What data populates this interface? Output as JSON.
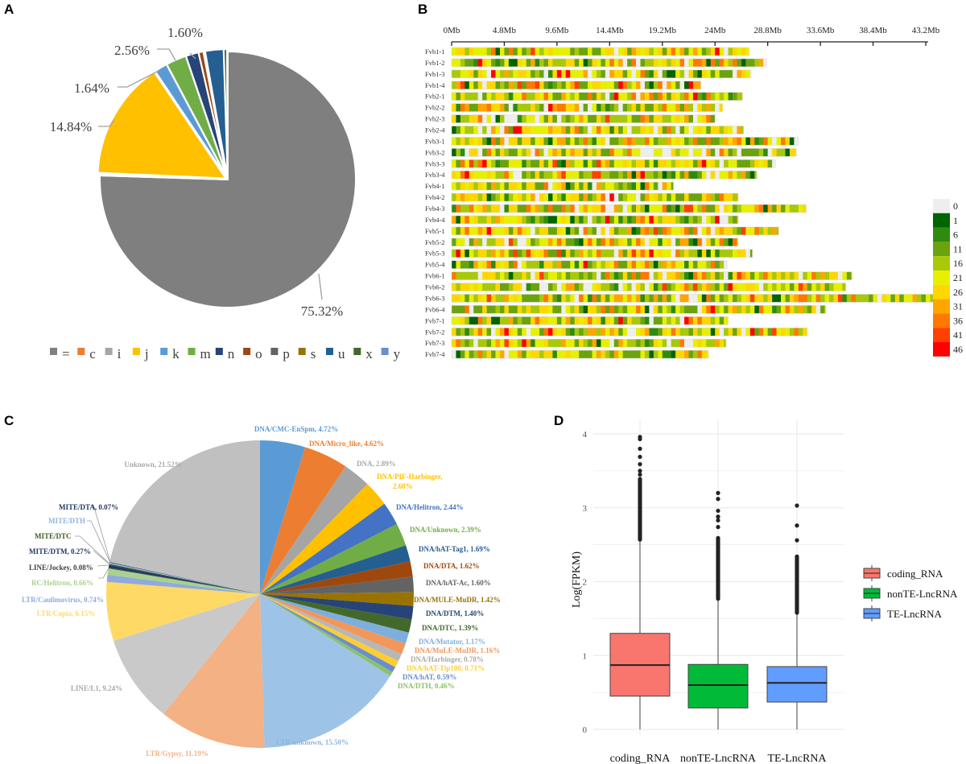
{
  "panels": {
    "a": "A",
    "b": "B",
    "c": "C",
    "d": "D"
  },
  "chart_data": [
    {
      "type": "pie",
      "panel": "A",
      "slices": [
        {
          "name": "=",
          "value": 75.32,
          "label": "75.32%",
          "color": "#7f7f7f"
        },
        {
          "name": "c",
          "value": 0.1,
          "label": "",
          "color": "#ed7d31"
        },
        {
          "name": "i",
          "value": 0.1,
          "label": "",
          "color": "#a5a5a5"
        },
        {
          "name": "j",
          "value": 14.84,
          "label": "14.84%",
          "color": "#ffc000"
        },
        {
          "name": "k",
          "value": 1.64,
          "label": "1.64%",
          "color": "#5b9bd5"
        },
        {
          "name": "m",
          "value": 2.56,
          "label": "2.56%",
          "color": "#70ad47"
        },
        {
          "name": "n",
          "value": 1.6,
          "label": "1.60%",
          "color": "#264478"
        },
        {
          "name": "o",
          "value": 0.6,
          "label": "",
          "color": "#9e480e"
        },
        {
          "name": "p",
          "value": 0.1,
          "label": "",
          "color": "#636363"
        },
        {
          "name": "s",
          "value": 0.1,
          "label": "",
          "color": "#997300"
        },
        {
          "name": "u",
          "value": 2.3,
          "label": "",
          "color": "#255e91"
        },
        {
          "name": "x",
          "value": 0.4,
          "label": "",
          "color": "#43682b"
        },
        {
          "name": "y",
          "value": 0.1,
          "label": "",
          "color": "#698ed0"
        }
      ],
      "legend": [
        "=",
        "c",
        "i",
        "j",
        "k",
        "m",
        "n",
        "o",
        "p",
        "s",
        "u",
        "x",
        "y"
      ],
      "legend_position": "bottom"
    },
    {
      "type": "heatmap",
      "panel": "B",
      "x_ticks": [
        "0Mb",
        "4.8Mb",
        "9.6Mb",
        "14.4Mb",
        "19.2Mb",
        "24Mb",
        "28.8Mb",
        "33.6Mb",
        "38.4Mb",
        "43.2Mb"
      ],
      "x_tick_values_mb": [
        0,
        4.8,
        9.6,
        14.4,
        19.2,
        24,
        28.8,
        33.6,
        38.4,
        43.2
      ],
      "axis_position": "top",
      "chromosomes": [
        {
          "name": "Fvb1-1",
          "length_mb": 27.1
        },
        {
          "name": "Fvb1-2",
          "length_mb": 28.7
        },
        {
          "name": "Fvb1-3",
          "length_mb": 27.3
        },
        {
          "name": "Fvb1-4",
          "length_mb": 22.7
        },
        {
          "name": "Fvb2-1",
          "length_mb": 26.5
        },
        {
          "name": "Fvb2-2",
          "length_mb": 24.7
        },
        {
          "name": "Fvb2-3",
          "length_mb": 24.0
        },
        {
          "name": "Fvb2-4",
          "length_mb": 26.6
        },
        {
          "name": "Fvb3-1",
          "length_mb": 31.6
        },
        {
          "name": "Fvb3-2",
          "length_mb": 31.4
        },
        {
          "name": "Fvb3-3",
          "length_mb": 29.5
        },
        {
          "name": "Fvb3-4",
          "length_mb": 27.8
        },
        {
          "name": "Fvb4-1",
          "length_mb": 20.2
        },
        {
          "name": "Fvb4-2",
          "length_mb": 26.1
        },
        {
          "name": "Fvb4-3",
          "length_mb": 32.3
        },
        {
          "name": "Fvb4-4",
          "length_mb": 26.1
        },
        {
          "name": "Fvb5-1",
          "length_mb": 29.8
        },
        {
          "name": "Fvb5-2",
          "length_mb": 26.1
        },
        {
          "name": "Fvb5-3",
          "length_mb": 27.4
        },
        {
          "name": "Fvb5-4",
          "length_mb": 25.1
        },
        {
          "name": "Fvb6-1",
          "length_mb": 36.5
        },
        {
          "name": "Fvb6-2",
          "length_mb": 35.9
        },
        {
          "name": "Fvb6-3",
          "length_mb": 44.2
        },
        {
          "name": "Fvb6-4",
          "length_mb": 34.1
        },
        {
          "name": "Fvb7-1",
          "length_mb": 25.2
        },
        {
          "name": "Fvb7-2",
          "length_mb": 32.4
        },
        {
          "name": "Fvb7-3",
          "length_mb": 25.0
        },
        {
          "name": "Fvb7-4",
          "length_mb": 23.4
        }
      ],
      "color_scale": [
        {
          "label": "0",
          "color": "#eeeeee"
        },
        {
          "label": "1",
          "color": "#006400"
        },
        {
          "label": "6",
          "color": "#2e8b0e"
        },
        {
          "label": "11",
          "color": "#6aa30e"
        },
        {
          "label": "16",
          "color": "#a8c80a"
        },
        {
          "label": "21",
          "color": "#e6f000"
        },
        {
          "label": "26",
          "color": "#ffd700"
        },
        {
          "label": "31",
          "color": "#ffa500"
        },
        {
          "label": "36",
          "color": "#ff7800"
        },
        {
          "label": "41",
          "color": "#ff4000"
        },
        {
          "label": "46",
          "color": "#ff0000"
        }
      ],
      "legend_position": "right"
    },
    {
      "type": "pie",
      "panel": "C",
      "slices": [
        {
          "name": "DNA/CMC-EnSpm",
          "value": 4.72,
          "label": "DNA/CMC-EnSpm, 4.72%",
          "color": "#5b9bd5"
        },
        {
          "name": "DNA/Micro_like",
          "value": 4.62,
          "label": "DNA/Micro_like, 4.62%",
          "color": "#ed7d31"
        },
        {
          "name": "DNA",
          "value": 2.89,
          "label": "DNA, 2.89%",
          "color": "#a5a5a5"
        },
        {
          "name": "DNA/PIF-Harbinger",
          "value": 2.68,
          "label": "DNA/PIF-Harbinger,",
          "label2": "2.68%",
          "color": "#ffc000"
        },
        {
          "name": "DNA/Helitron",
          "value": 2.44,
          "label": "DNA/Helitron, 2.44%",
          "color": "#4472c4"
        },
        {
          "name": "DNA/Unknown",
          "value": 2.39,
          "label": "DNA/Unknown, 2.39%",
          "color": "#70ad47"
        },
        {
          "name": "DNA/hAT-Tag1",
          "value": 1.69,
          "label": "DNA/hAT-Tag1, 1.69%",
          "color": "#255e91"
        },
        {
          "name": "DNA/DTA",
          "value": 1.62,
          "label": "DNA/DTA, 1.62%",
          "color": "#9e480e"
        },
        {
          "name": "DNA/hAT-Ac",
          "value": 1.6,
          "label": "DNA/hAT-Ac, 1.60%",
          "color": "#636363"
        },
        {
          "name": "DNA/MULE-MuDR",
          "value": 1.42,
          "label": "DNA/MULE-MuDR, 1.42%",
          "color": "#997300"
        },
        {
          "name": "DNA/DTM",
          "value": 1.4,
          "label": "DNA/DTM, 1.40%",
          "color": "#264478"
        },
        {
          "name": "DNA/DTC",
          "value": 1.39,
          "label": "DNA/DTC, 1.39%",
          "color": "#43682b"
        },
        {
          "name": "DNA/Mutator",
          "value": 1.17,
          "label": "DNA/Mutator, 1.17%",
          "color": "#7cafdd"
        },
        {
          "name": "DNA/MuLE-MuDR",
          "value": 1.16,
          "label": "DNA/MuLE-MuDR, 1.16%",
          "color": "#f1975a"
        },
        {
          "name": "DNA/Harbinger",
          "value": 0.78,
          "label": "DNA/Harbinger, 0.78%",
          "color": "#b7b7b7"
        },
        {
          "name": "DNA/hAT-Tip100",
          "value": 0.71,
          "label": "DNA/hAT-Tip100, 0.71%",
          "color": "#ffcd33"
        },
        {
          "name": "DNA/hAT",
          "value": 0.59,
          "label": "DNA/hAT, 0.59%",
          "color": "#698ed0"
        },
        {
          "name": "DNA/DTH",
          "value": 0.46,
          "label": "DNA/DTH, 0.46%",
          "color": "#8cc168"
        },
        {
          "name": "LTR/unknown",
          "value": 15.5,
          "label": "LTR/unknown, 15.50%",
          "color": "#9dc3e6"
        },
        {
          "name": "LTR/Gypsy",
          "value": 11.19,
          "label": "LTR/Gypsy, 11.19%",
          "color": "#f4b183"
        },
        {
          "name": "LINE/L1",
          "value": 9.24,
          "label": "LINE/L1, 9.24%",
          "color": "#c9c9c9"
        },
        {
          "name": "LTR/Copia",
          "value": 6.15,
          "label": "LTR/Copia, 6.15%",
          "color": "#ffd966"
        },
        {
          "name": "LTR/Caulimovirus",
          "value": 0.74,
          "label": "LTR/Caulimovirus, 0.74%",
          "color": "#8faadc"
        },
        {
          "name": "RC/Helitron",
          "value": 0.66,
          "label": "RC/Helitron, 0.66%",
          "color": "#a9d18e"
        },
        {
          "name": "LINE/Jockey",
          "value": 0.08,
          "label": "LINE/Jockey, 0.08%",
          "color": "#404040"
        },
        {
          "name": "MITE/DTM",
          "value": 0.27,
          "label": "MITE/DTM, 0.27%",
          "color": "#1f3864"
        },
        {
          "name": "MITE/DTC",
          "value": null,
          "label": "MITE/DTC",
          "color": "#3d5a24"
        },
        {
          "name": "MITE/DTH",
          "value": null,
          "label": "MITE/DTH",
          "color": "#9dc3e6"
        },
        {
          "name": "MITE/DTA",
          "value": 0.07,
          "label": "MITE/DTA, 0.07%",
          "color": "#203864"
        },
        {
          "name": "Unknown",
          "value": 21.52,
          "label": "Unknown, 21.52%",
          "color": "#c0c0c0"
        }
      ]
    },
    {
      "type": "box",
      "panel": "D",
      "ylabel": "Log(FPKM)",
      "ylim": [
        0,
        4
      ],
      "y_ticks": [
        "0",
        "1",
        "2",
        "3",
        "4"
      ],
      "grid": true,
      "legend_position": "right",
      "series": [
        {
          "name": "coding_RNA",
          "color": "#f8766d",
          "min": 0,
          "q1": 0.45,
          "median": 0.87,
          "q3": 1.3,
          "whisker_high": 2.55,
          "outlier_dense_range": [
            2.57,
            3.4
          ],
          "outliers": [
            3.45,
            3.5,
            3.59,
            3.69,
            3.8,
            3.93,
            3.96
          ]
        },
        {
          "name": "nonTE-LncRNA",
          "color": "#00ba38",
          "min": 0,
          "q1": 0.29,
          "median": 0.6,
          "q3": 0.88,
          "whisker_high": 1.75,
          "outlier_dense_range": [
            1.77,
            2.6
          ],
          "outliers": [
            2.74,
            2.83,
            2.88,
            2.96,
            3.12,
            3.2
          ]
        },
        {
          "name": "TE-LncRNA",
          "color": "#619cff",
          "min": 0,
          "q1": 0.37,
          "median": 0.63,
          "q3": 0.85,
          "whisker_high": 1.57,
          "outlier_dense_range": [
            1.58,
            2.35
          ],
          "outliers": [
            2.56,
            2.76,
            3.03
          ]
        }
      ]
    }
  ]
}
